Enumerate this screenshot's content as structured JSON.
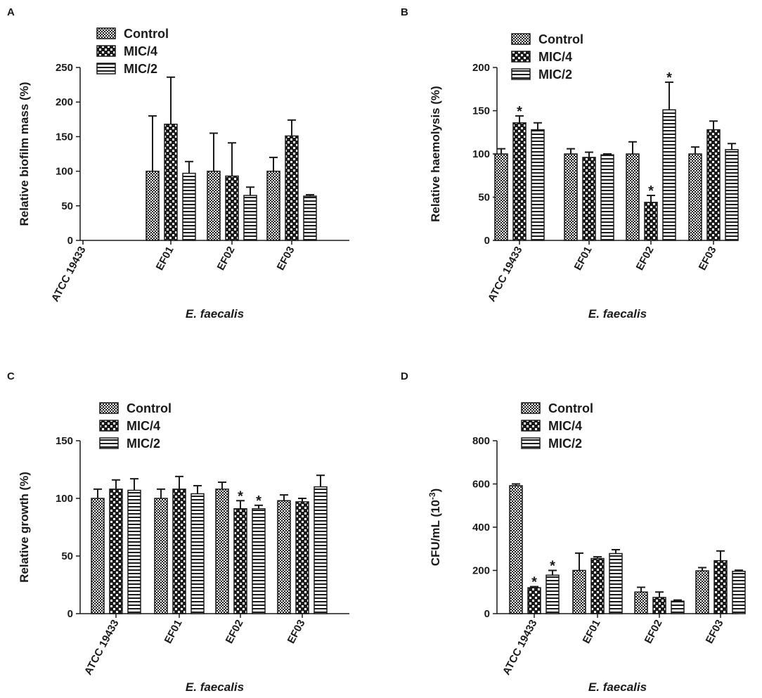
{
  "colors": {
    "ink": "#1a1a1a",
    "background": "#ffffff"
  },
  "chart_data": [
    {
      "panel": "A",
      "type": "bar",
      "title": "",
      "xlabel": "E. faecalis",
      "ylabel": "Relative biofilm mass (%)",
      "categories": [
        "ATCC 19433",
        "EF01",
        "EF02",
        "EF03"
      ],
      "ylim": [
        0,
        250
      ],
      "yticks": [
        0,
        50,
        100,
        150,
        200,
        250
      ],
      "legend_position": "top-left",
      "series": [
        {
          "name": "Control",
          "pattern": "dots-fine",
          "values": [
            null,
            100,
            100,
            100
          ],
          "errors": [
            null,
            80,
            55,
            20
          ],
          "sig": [
            false,
            false,
            false,
            false
          ]
        },
        {
          "name": "MIC/4",
          "pattern": "checker",
          "values": [
            null,
            168,
            93,
            151
          ],
          "errors": [
            null,
            68,
            48,
            23
          ],
          "sig": [
            false,
            false,
            false,
            false
          ]
        },
        {
          "name": "MIC/2",
          "pattern": "hstripes",
          "values": [
            null,
            97,
            65,
            64
          ],
          "errors": [
            null,
            17,
            12,
            2
          ],
          "sig": [
            false,
            false,
            false,
            false
          ]
        }
      ]
    },
    {
      "panel": "B",
      "type": "bar",
      "title": "",
      "xlabel": "E. faecalis",
      "ylabel": "Relative haemolysis (%)",
      "categories": [
        "ATCC 19433",
        "EF01",
        "EF02",
        "EF03"
      ],
      "ylim": [
        0,
        200
      ],
      "yticks": [
        0,
        50,
        100,
        150,
        200
      ],
      "legend_position": "top",
      "series": [
        {
          "name": "Control",
          "pattern": "dots-fine",
          "values": [
            100,
            100,
            100,
            100
          ],
          "errors": [
            6,
            6,
            14,
            8
          ],
          "sig": [
            false,
            false,
            false,
            false
          ]
        },
        {
          "name": "MIC/4",
          "pattern": "checker",
          "values": [
            136,
            96,
            44,
            128
          ],
          "errors": [
            8,
            6,
            8,
            10
          ],
          "sig": [
            true,
            false,
            true,
            false
          ]
        },
        {
          "name": "MIC/2",
          "pattern": "hstripes",
          "values": [
            128,
            99,
            151,
            105
          ],
          "errors": [
            8,
            1,
            32,
            7
          ],
          "sig": [
            false,
            false,
            true,
            false
          ]
        }
      ]
    },
    {
      "panel": "C",
      "type": "bar",
      "title": "",
      "xlabel": "E. faecalis",
      "ylabel": "Relative growth (%)",
      "categories": [
        "ATCC 19433",
        "EF01",
        "EF02",
        "EF03"
      ],
      "ylim": [
        0,
        150
      ],
      "yticks": [
        0,
        50,
        100,
        150
      ],
      "legend_position": "top",
      "series": [
        {
          "name": "Control",
          "pattern": "dots-fine",
          "values": [
            100,
            100,
            108,
            98
          ],
          "errors": [
            8,
            8,
            6,
            5
          ],
          "sig": [
            false,
            false,
            false,
            false
          ]
        },
        {
          "name": "MIC/4",
          "pattern": "checker",
          "values": [
            108,
            108,
            91,
            97
          ],
          "errors": [
            8,
            11,
            7,
            3
          ],
          "sig": [
            false,
            false,
            true,
            false
          ]
        },
        {
          "name": "MIC/2",
          "pattern": "hstripes",
          "values": [
            107,
            104,
            91,
            110
          ],
          "errors": [
            10,
            7,
            3,
            10
          ],
          "sig": [
            false,
            false,
            true,
            false
          ]
        }
      ]
    },
    {
      "panel": "D",
      "type": "bar",
      "title": "",
      "xlabel": "E. faecalis",
      "ylabel_main": "CFU/mL (10",
      "ylabel_exp": "-3",
      "ylabel_close": ")",
      "categories": [
        "ATCC 19433",
        "EF01",
        "EF02",
        "EF03"
      ],
      "ylim": [
        0,
        800
      ],
      "yticks": [
        0,
        200,
        400,
        600,
        800
      ],
      "legend_position": "top",
      "series": [
        {
          "name": "Control",
          "pattern": "dots-fine",
          "values": [
            592,
            200,
            100,
            198
          ],
          "errors": [
            8,
            80,
            22,
            15
          ],
          "sig": [
            false,
            false,
            false,
            false
          ]
        },
        {
          "name": "MIC/4",
          "pattern": "checker",
          "values": [
            120,
            255,
            75,
            245
          ],
          "errors": [
            5,
            8,
            25,
            45
          ],
          "sig": [
            true,
            false,
            false,
            false
          ]
        },
        {
          "name": "MIC/2",
          "pattern": "hstripes",
          "values": [
            178,
            278,
            58,
            196
          ],
          "errors": [
            22,
            18,
            5,
            5
          ],
          "sig": [
            true,
            false,
            false,
            false
          ]
        }
      ]
    }
  ]
}
